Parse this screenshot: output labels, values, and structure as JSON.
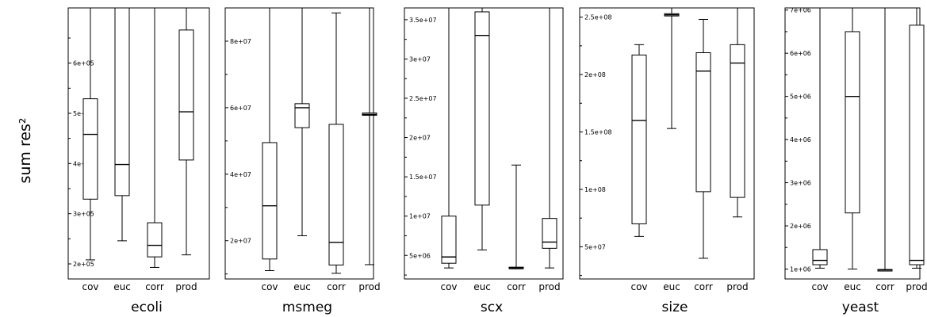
{
  "y_axis_label": "sum res²",
  "chart_data": [
    {
      "type": "box",
      "title": "ecoli",
      "categories": [
        "cov",
        "euc",
        "corr",
        "prod"
      ],
      "yticks": [
        "2e+05",
        "3e+05",
        "4e+05",
        "5e+05",
        "6e+05"
      ],
      "ytick_values": [
        200000,
        300000,
        400000,
        500000,
        600000
      ],
      "ylim": [
        170000,
        710000
      ],
      "boxes": [
        {
          "min": 208000,
          "q1": 329000,
          "median": 458000,
          "q3": 529000,
          "max": 710000
        },
        {
          "min": 246000,
          "q1": 336000,
          "median": 398000,
          "q3": 710000,
          "max": 710000
        },
        {
          "min": 193000,
          "q1": 214000,
          "median": 237000,
          "q3": 282000,
          "max": 710000
        },
        {
          "min": 218000,
          "q1": 407000,
          "median": 503000,
          "q3": 666000,
          "max": 710000
        }
      ]
    },
    {
      "type": "box",
      "title": "msmeg",
      "categories": [
        "cov",
        "euc",
        "corr",
        "prod"
      ],
      "yticks": [
        "2e+07",
        "4e+07",
        "6e+07",
        "8e+07"
      ],
      "ytick_values": [
        20000000,
        40000000,
        60000000,
        80000000
      ],
      "ylim": [
        8500000,
        90000000
      ],
      "boxes": [
        {
          "min": 11000000,
          "q1": 14500000,
          "median": 30500000,
          "q3": 49500000,
          "max": 90000000
        },
        {
          "min": 21500000,
          "q1": 54000000,
          "median": 60000000,
          "q3": 61200000,
          "max": 90000000
        },
        {
          "min": 10200000,
          "q1": 12700000,
          "median": 19500000,
          "q3": 55000000,
          "max": 88500000
        },
        {
          "min": 12800000,
          "q1": 57700000,
          "median": 58000000,
          "q3": 58400000,
          "max": 90000000
        }
      ]
    },
    {
      "type": "box",
      "title": "scx",
      "categories": [
        "cov",
        "euc",
        "corr",
        "prod"
      ],
      "yticks": [
        "5e+06",
        "1e+07",
        "1.5e+07",
        "2e+07",
        "2.5e+07",
        "3e+07",
        "3.5e+07"
      ],
      "ytick_values": [
        5000000,
        10000000,
        15000000,
        20000000,
        25000000,
        30000000,
        35000000
      ],
      "ylim": [
        2000000,
        36500000
      ],
      "boxes": [
        {
          "min": 3400000,
          "q1": 4000000,
          "median": 4800000,
          "q3": 10000000,
          "max": 36500000
        },
        {
          "min": 5700000,
          "q1": 11400000,
          "median": 33000000,
          "q3": 36000000,
          "max": 36500000
        },
        {
          "min": 3300000,
          "q1": 3350000,
          "median": 3400000,
          "q3": 3500000,
          "max": 16500000
        },
        {
          "min": 3400000,
          "q1": 5900000,
          "median": 6700000,
          "q3": 9700000,
          "max": 36500000
        }
      ]
    },
    {
      "type": "box",
      "title": "size",
      "categories": [
        "cov",
        "euc",
        "corr",
        "prod"
      ],
      "yticks": [
        "5e+07",
        "1e+08",
        "1.5e+08",
        "2e+08",
        "2.5e+08"
      ],
      "ytick_values": [
        50000000,
        100000000,
        150000000,
        200000000,
        250000000
      ],
      "ylim": [
        22000000,
        258000000
      ],
      "boxes": [
        {
          "min": 59000000,
          "q1": 70000000,
          "median": 160000000,
          "q3": 217000000,
          "max": 226000000
        },
        {
          "min": 153000000,
          "q1": 251000000,
          "median": 252000000,
          "q3": 253000000,
          "max": 258000000
        },
        {
          "min": 40000000,
          "q1": 98000000,
          "median": 203000000,
          "q3": 219000000,
          "max": 248000000
        },
        {
          "min": 76000000,
          "q1": 93000000,
          "median": 210000000,
          "q3": 226000000,
          "max": 258000000
        }
      ]
    },
    {
      "type": "box",
      "title": "yeast",
      "categories": [
        "cov",
        "euc",
        "corr",
        "prod"
      ],
      "yticks": [
        "1e+06",
        "2e+06",
        "3e+06",
        "4e+06",
        "5e+06",
        "6e+06",
        "7e+06"
      ],
      "ytick_values": [
        1000000,
        2000000,
        3000000,
        4000000,
        5000000,
        6000000,
        7000000
      ],
      "ylim": [
        770000,
        7050000
      ],
      "boxes": [
        {
          "min": 1020000,
          "q1": 1100000,
          "median": 1200000,
          "q3": 1450000,
          "max": 7050000
        },
        {
          "min": 1000000,
          "q1": 2300000,
          "median": 5000000,
          "q3": 6500000,
          "max": 7050000
        },
        {
          "min": 960000,
          "q1": 970000,
          "median": 980000,
          "q3": 990000,
          "max": 7050000
        },
        {
          "min": 1020000,
          "q1": 1100000,
          "median": 1200000,
          "q3": 6650000,
          "max": 7050000
        }
      ]
    }
  ]
}
